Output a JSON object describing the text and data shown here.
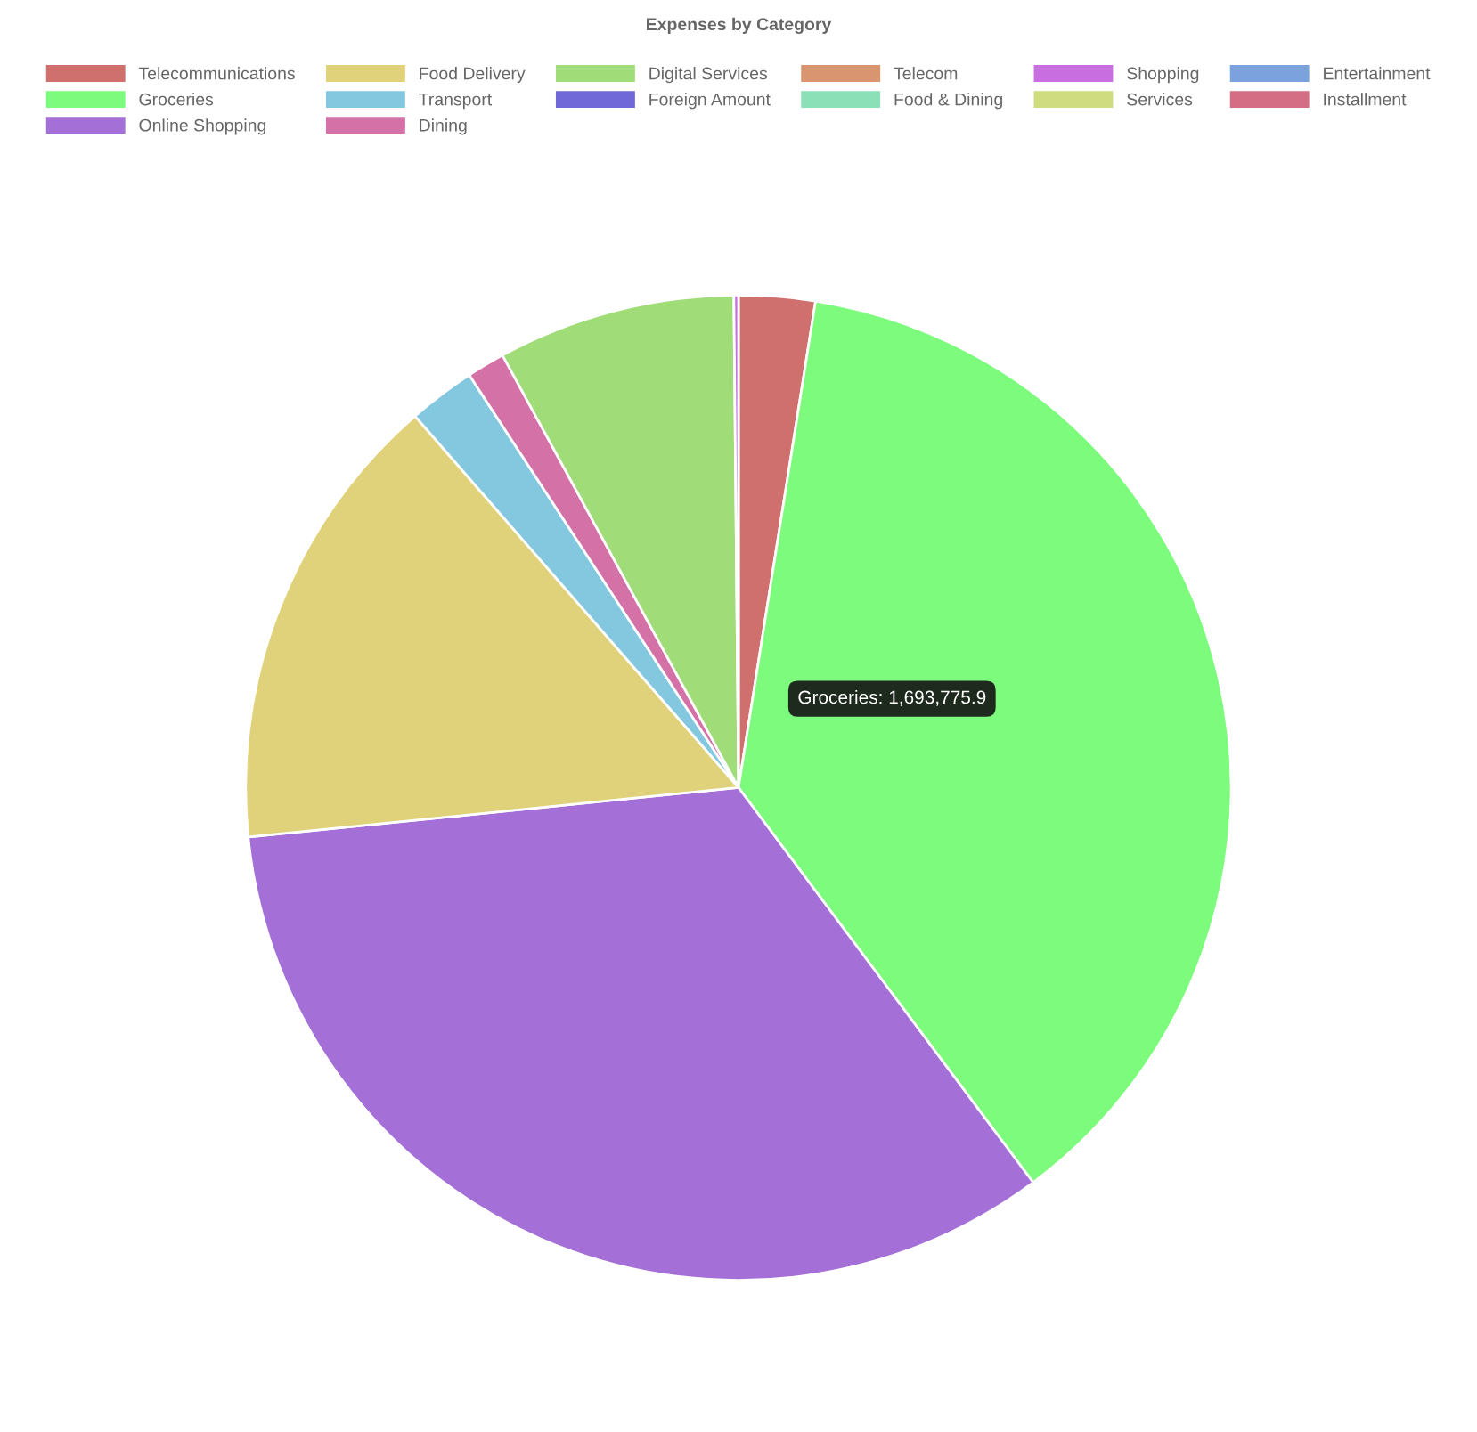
{
  "chart_data": {
    "type": "pie",
    "title": "Expenses by Category",
    "categories": [
      "Telecommunications",
      "Groceries",
      "Online Shopping",
      "Food Delivery",
      "Transport",
      "Dining",
      "Digital Services",
      "Foreign Amount",
      "Telecom",
      "Food & Dining",
      "Shopping",
      "Services",
      "Entertainment",
      "Installment"
    ],
    "values": [
      2.5,
      37.3,
      33.6,
      15.2,
      2.2,
      1.25,
      7.8,
      null,
      null,
      null,
      0.15,
      null,
      null,
      null
    ],
    "colors": [
      "#d0706e",
      "#7cfb7c",
      "#a470d8",
      "#e0d27a",
      "#84c8e0",
      "#d472a8",
      "#a0dd78",
      "#7068d8",
      "#d8956f",
      "#8ce0b8",
      "#c86ee0",
      "#d0dc80",
      "#7ba2dc",
      "#d46e84"
    ],
    "legend": "top",
    "annotations": [
      "Groceries: 1,693,775.9"
    ]
  }
}
